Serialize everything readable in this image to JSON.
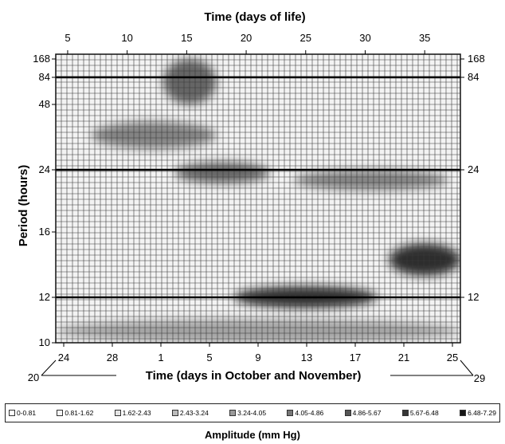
{
  "chart_data": {
    "type": "heatmap",
    "title": "Time (days of life)",
    "xlabel": "Time (days in October and November)",
    "ylabel": "Period (hours)",
    "x_top": {
      "label": "Time (days of life)",
      "ticks": [
        "5",
        "10",
        "15",
        "20",
        "25",
        "30",
        "35"
      ],
      "range": [
        4,
        38
      ]
    },
    "x_bottom": {
      "label": "Time (days in October and November)",
      "ticks": [
        "24",
        "28",
        "1",
        "5",
        "9",
        "13",
        "17",
        "21",
        "25"
      ],
      "start_label": "20",
      "end_label": "29"
    },
    "y_left": {
      "ticks": [
        "168",
        "84",
        "48",
        "24",
        "16",
        "12",
        "10"
      ]
    },
    "y_right": {
      "ticks": [
        "168",
        "84",
        "24",
        "12"
      ]
    },
    "reference_lines_hours": [
      84,
      24,
      12
    ],
    "legend": {
      "title": "Amplitude (mm Hg)",
      "bins": [
        {
          "label": "0-0.81",
          "color": "#ffffff"
        },
        {
          "label": "0.81-1.62",
          "color": "#f5f5f5"
        },
        {
          "label": "1.62-2.43",
          "color": "#e4e4e4"
        },
        {
          "label": "2.43-3.24",
          "color": "#bcbcbc"
        },
        {
          "label": "3.24-4.05",
          "color": "#9a9a9a"
        },
        {
          "label": "4.05-4.86",
          "color": "#777777"
        },
        {
          "label": "4.86-5.67",
          "color": "#555555"
        },
        {
          "label": "5.67-6.48",
          "color": "#363636"
        },
        {
          "label": "6.48-7.29",
          "color": "#161616"
        }
      ]
    },
    "high_amplitude_regions": [
      {
        "day_from": 13,
        "day_to": 17.5,
        "period_from": 48,
        "period_to": 168,
        "level": 6
      },
      {
        "day_from": 7,
        "day_to": 17.5,
        "period_from": 30,
        "period_to": 40,
        "level": 5
      },
      {
        "day_from": 14,
        "day_to": 22,
        "period_from": 22,
        "period_to": 26,
        "level": 6
      },
      {
        "day_from": 24,
        "day_to": 37,
        "period_from": 21,
        "period_to": 24,
        "level": 5
      },
      {
        "day_from": 32,
        "day_to": 38,
        "period_from": 13.2,
        "period_to": 15.2,
        "level": 8
      },
      {
        "day_from": 19,
        "day_to": 31,
        "period_from": 11.5,
        "period_to": 12.6,
        "level": 8
      },
      {
        "day_from": 4,
        "day_to": 38,
        "period_from": 10,
        "period_to": 11,
        "level": 4
      }
    ]
  }
}
